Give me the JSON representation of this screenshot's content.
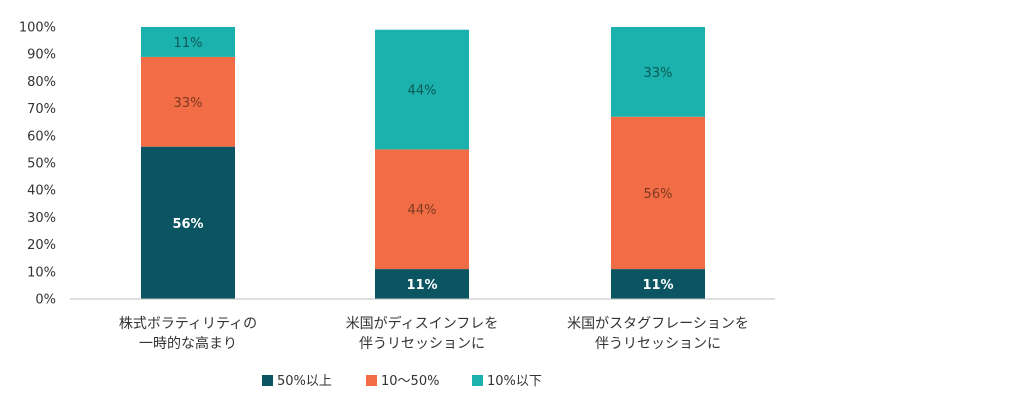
{
  "chart_data": {
    "type": "bar",
    "stacked": true,
    "categories": [
      [
        "株式ボラティリティの",
        "一時的な高まり"
      ],
      [
        "米国がディスインフレを",
        "伴うリセッションに"
      ],
      [
        "米国がスタグフレーションを",
        "伴うリセッションに"
      ]
    ],
    "series": [
      {
        "name": "50%以上",
        "color": "#0b5563",
        "values": [
          56,
          11,
          11
        ],
        "labels": [
          "56%",
          "11%",
          "11%"
        ],
        "label_color": "#ffffff"
      },
      {
        "name": "10～50%",
        "color": "#f26d45",
        "values": [
          33,
          44,
          56
        ],
        "labels": [
          "33%",
          "44%",
          "56%"
        ],
        "label_color": "#7a3a22"
      },
      {
        "name": "10%以下",
        "color": "#1bb2ad",
        "values": [
          11,
          44,
          33
        ],
        "labels": [
          "11%",
          "44%",
          "33%"
        ],
        "label_color": "#0d5a57"
      }
    ],
    "ylim": [
      0,
      100
    ],
    "yticks": [
      "0%",
      "10%",
      "20%",
      "30%",
      "40%",
      "50%",
      "60%",
      "70%",
      "80%",
      "90%",
      "100%"
    ],
    "grid": false,
    "legend_position": "bottom-center",
    "title": "",
    "xlabel": "",
    "ylabel": ""
  }
}
